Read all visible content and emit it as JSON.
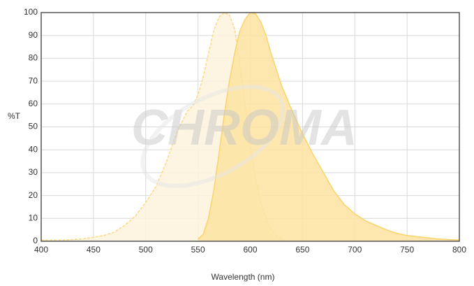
{
  "chart_data": {
    "type": "area",
    "xlabel": "Wavelength (nm)",
    "ylabel": "%T",
    "watermark": "CHROMA",
    "xlim": [
      400,
      800
    ],
    "xticks": [
      400,
      450,
      500,
      550,
      600,
      650,
      700,
      750,
      800
    ],
    "ylim": [
      0,
      100
    ],
    "yticks": [
      0,
      10,
      20,
      30,
      40,
      50,
      60,
      70,
      80,
      90,
      100
    ],
    "grid": true,
    "series": [
      {
        "color": "#fdd982",
        "fill": "#fdf3dc",
        "dashed": true,
        "x": [
          400,
          420,
          440,
          460,
          470,
          480,
          490,
          500,
          510,
          520,
          530,
          540,
          545,
          550,
          555,
          560,
          565,
          570,
          575,
          580,
          585,
          590,
          595,
          600,
          605,
          610,
          615,
          620,
          625,
          630,
          632
        ],
        "values": [
          0.5,
          0.5,
          1,
          2.5,
          4,
          7,
          11,
          17,
          24,
          35,
          48,
          57,
          59,
          64,
          72,
          82,
          92,
          98,
          100,
          99,
          93,
          78,
          60,
          42,
          28,
          17,
          10,
          5,
          2.5,
          1,
          0.5
        ]
      },
      {
        "color": "#fcd36a",
        "fill": "#fde3a0",
        "dashed": false,
        "x": [
          550,
          555,
          560,
          565,
          570,
          575,
          580,
          585,
          590,
          595,
          600,
          605,
          610,
          615,
          620,
          630,
          640,
          650,
          660,
          670,
          680,
          690,
          700,
          710,
          720,
          730,
          740,
          750,
          760,
          780,
          800
        ],
        "values": [
          1,
          3,
          10,
          22,
          38,
          55,
          70,
          82,
          92,
          97,
          100,
          99.5,
          96,
          90,
          82,
          68,
          57,
          47,
          38,
          30,
          22,
          16,
          12,
          9,
          7,
          5,
          3.5,
          2.5,
          2,
          1,
          0.5
        ]
      }
    ]
  }
}
